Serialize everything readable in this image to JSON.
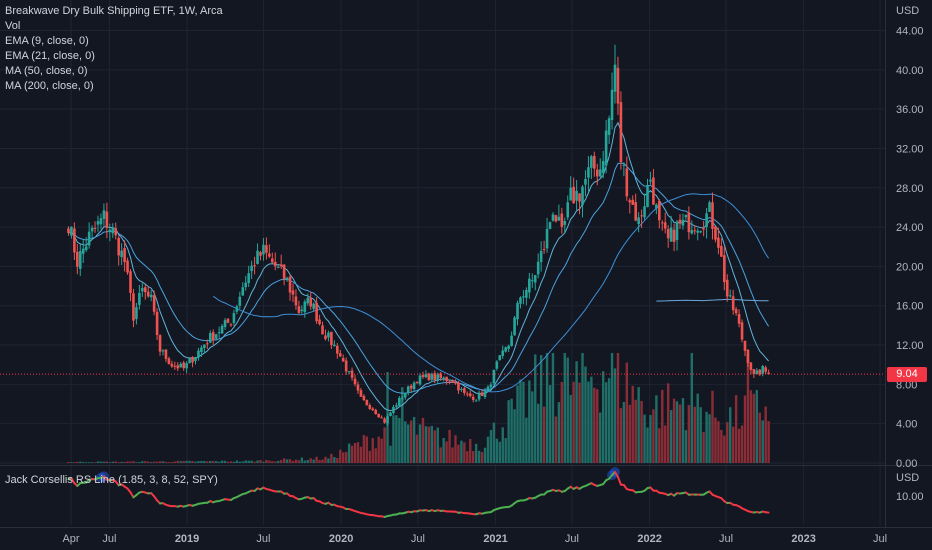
{
  "chart_data": [
    {
      "type": "candlestick",
      "title": "Breakwave Dry Bulk Shipping ETF, 1W, Arca",
      "indicators": [
        "Vol",
        "EMA (9, close, 0)",
        "EMA (21, close, 0)",
        "MA (50, close, 0)",
        "MA (200, close, 0)"
      ],
      "currency": "USD",
      "last_price": "9.04",
      "y_ticks": [
        "44.00",
        "40.00",
        "36.00",
        "32.00",
        "28.00",
        "24.00",
        "20.00",
        "16.00",
        "12.00",
        "8.00",
        "4.00",
        "0.00"
      ],
      "ylim": [
        0,
        44
      ],
      "x_ticks": [
        "Apr",
        "Jul",
        "2019",
        "Jul",
        "2020",
        "Jul",
        "2021",
        "Jul",
        "2022",
        "Jul",
        "2023",
        "Jul"
      ],
      "x_tick_dates": [
        "2018-04-01",
        "2018-07-01",
        "2019-01-01",
        "2019-07-01",
        "2020-01-01",
        "2020-07-01",
        "2021-01-01",
        "2021-07-01",
        "2022-01-01",
        "2022-07-01",
        "2023-01-01",
        "2023-07-01"
      ],
      "close_anchors": [
        [
          "2018-03-26",
          24.5
        ],
        [
          "2018-04-16",
          20.5
        ],
        [
          "2018-05-14",
          23.0
        ],
        [
          "2018-06-18",
          25.0
        ],
        [
          "2018-07-09",
          23.5
        ],
        [
          "2018-08-06",
          20.5
        ],
        [
          "2018-08-27",
          15.0
        ],
        [
          "2018-09-17",
          17.5
        ],
        [
          "2018-10-08",
          16.5
        ],
        [
          "2018-10-29",
          11.5
        ],
        [
          "2018-11-26",
          10.0
        ],
        [
          "2018-12-24",
          9.6
        ],
        [
          "2019-01-21",
          11.0
        ],
        [
          "2019-02-18",
          12.5
        ],
        [
          "2019-03-18",
          13.5
        ],
        [
          "2019-04-15",
          14.5
        ],
        [
          "2019-05-13",
          18.0
        ],
        [
          "2019-06-10",
          20.5
        ],
        [
          "2019-07-01",
          21.5
        ],
        [
          "2019-07-29",
          20.0
        ],
        [
          "2019-08-26",
          18.5
        ],
        [
          "2019-09-23",
          15.5
        ],
        [
          "2019-10-21",
          16.5
        ],
        [
          "2019-11-18",
          13.5
        ],
        [
          "2019-12-23",
          11.5
        ],
        [
          "2020-01-20",
          9.0
        ],
        [
          "2020-02-17",
          6.5
        ],
        [
          "2020-03-16",
          5.5
        ],
        [
          "2020-04-13",
          4.2
        ],
        [
          "2020-05-04",
          5.6
        ],
        [
          "2020-06-01",
          7.2
        ],
        [
          "2020-06-29",
          8.5
        ],
        [
          "2020-07-27",
          8.8
        ],
        [
          "2020-08-24",
          8.6
        ],
        [
          "2020-09-21",
          8.4
        ],
        [
          "2020-10-19",
          7.0
        ],
        [
          "2020-11-16",
          6.6
        ],
        [
          "2020-12-14",
          7.5
        ],
        [
          "2021-01-04",
          10.0
        ],
        [
          "2021-02-01",
          12.0
        ],
        [
          "2021-03-01",
          17.0
        ],
        [
          "2021-03-29",
          18.5
        ],
        [
          "2021-04-26",
          22.0
        ],
        [
          "2021-05-17",
          26.0
        ],
        [
          "2021-06-07",
          23.0
        ],
        [
          "2021-06-28",
          27.0
        ],
        [
          "2021-07-19",
          27.5
        ],
        [
          "2021-08-16",
          30.0
        ],
        [
          "2021-09-06",
          30.0
        ],
        [
          "2021-09-27",
          35.0
        ],
        [
          "2021-10-11",
          40.5
        ],
        [
          "2021-10-25",
          31.0
        ],
        [
          "2021-11-15",
          27.0
        ],
        [
          "2021-12-06",
          24.5
        ],
        [
          "2022-01-03",
          29.0
        ],
        [
          "2022-01-24",
          24.0
        ],
        [
          "2022-02-14",
          22.5
        ],
        [
          "2022-03-07",
          24.0
        ],
        [
          "2022-04-04",
          24.5
        ],
        [
          "2022-05-02",
          24.5
        ],
        [
          "2022-05-23",
          25.5
        ],
        [
          "2022-06-13",
          22.5
        ],
        [
          "2022-07-04",
          17.0
        ],
        [
          "2022-07-25",
          15.0
        ],
        [
          "2022-08-15",
          11.5
        ],
        [
          "2022-09-05",
          8.8
        ],
        [
          "2022-09-26",
          9.5
        ],
        [
          "2022-10-10",
          9.04
        ]
      ],
      "volume_ylim": [
        0,
        60
      ],
      "volume_anchors": [
        [
          "2018-03-26",
          0.2
        ],
        [
          "2019-06-01",
          0.4
        ],
        [
          "2019-12-01",
          1.0
        ],
        [
          "2020-03-01",
          4.5
        ],
        [
          "2020-06-01",
          8.0
        ],
        [
          "2020-09-01",
          5.0
        ],
        [
          "2020-12-01",
          4.0
        ],
        [
          "2021-01-15",
          8.0
        ],
        [
          "2021-03-01",
          12.0
        ],
        [
          "2021-05-01",
          18.0
        ],
        [
          "2021-07-01",
          16.0
        ],
        [
          "2021-10-01",
          20.0
        ],
        [
          "2022-01-01",
          11.0
        ],
        [
          "2022-04-01",
          13.0
        ],
        [
          "2022-07-01",
          9.0
        ],
        [
          "2022-10-10",
          12.0
        ]
      ],
      "volume_spikes": [
        [
          "2021-05-17",
          36.5
        ],
        [
          "2021-05-03",
          28.0
        ],
        [
          "2021-06-14",
          22.0
        ],
        [
          "2021-10-04",
          28.0
        ],
        [
          "2022-04-11",
          22.0
        ],
        [
          "2022-08-22",
          22.0
        ],
        [
          "2020-04-20",
          18.0
        ],
        [
          "2020-05-25",
          15.0
        ]
      ]
    },
    {
      "type": "line",
      "title": "Jack Corsellis RS Line (1.85, 3, 8, 52, SPY)",
      "currency": "USD",
      "y_ticks": [
        "10.00"
      ],
      "rising_color": "#4caf50",
      "falling_color": "#f23645",
      "highlight_color": "#2962ff"
    }
  ]
}
